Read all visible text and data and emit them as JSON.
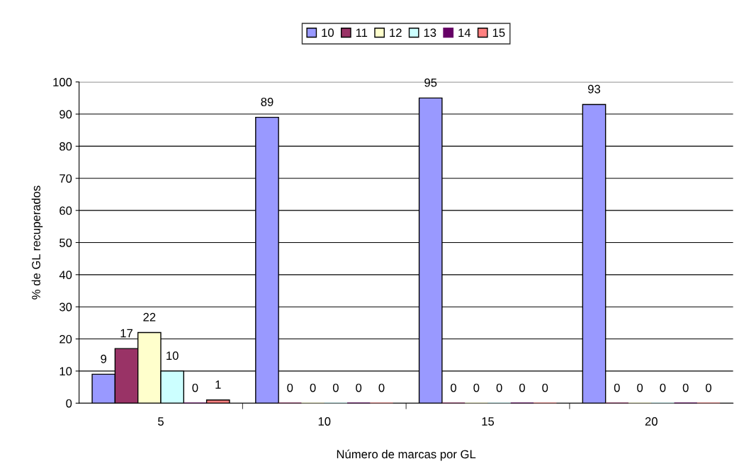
{
  "chart_data": {
    "type": "bar",
    "xlabel": "Número de marcas por GL",
    "ylabel": "% de GL recuperados",
    "categories": [
      "5",
      "10",
      "15",
      "20"
    ],
    "series": [
      {
        "name": "10",
        "color": "#9999ff",
        "values": [
          9,
          89,
          95,
          93
        ]
      },
      {
        "name": "11",
        "color": "#993366",
        "values": [
          17,
          0,
          0,
          0
        ]
      },
      {
        "name": "12",
        "color": "#ffffcc",
        "values": [
          22,
          0,
          0,
          0
        ]
      },
      {
        "name": "13",
        "color": "#ccffff",
        "values": [
          10,
          0,
          0,
          0
        ]
      },
      {
        "name": "14",
        "color": "#660066",
        "values": [
          0,
          0,
          0,
          0
        ]
      },
      {
        "name": "15",
        "color": "#ff8080",
        "values": [
          1,
          0,
          0,
          0
        ]
      }
    ],
    "ylim": [
      0,
      100
    ],
    "yticks": [
      0,
      10,
      20,
      30,
      40,
      50,
      60,
      70,
      80,
      90,
      100
    ],
    "grid": "y",
    "legend": "top",
    "data_labels": true
  }
}
